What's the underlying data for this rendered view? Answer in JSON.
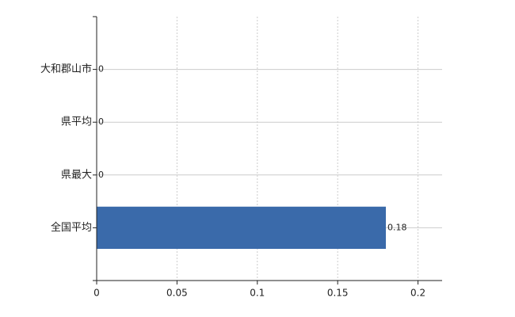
{
  "chart_data": {
    "type": "bar",
    "orientation": "horizontal",
    "categories": [
      "大和郡山市",
      "県平均",
      "県最大",
      "全国平均"
    ],
    "values": [
      0,
      0,
      0,
      0.18
    ],
    "color": "#3a6aaa",
    "xlim": [
      0,
      0.215
    ],
    "xticks": [
      0,
      0.05,
      0.1,
      0.15,
      0.2
    ],
    "grid": true
  }
}
